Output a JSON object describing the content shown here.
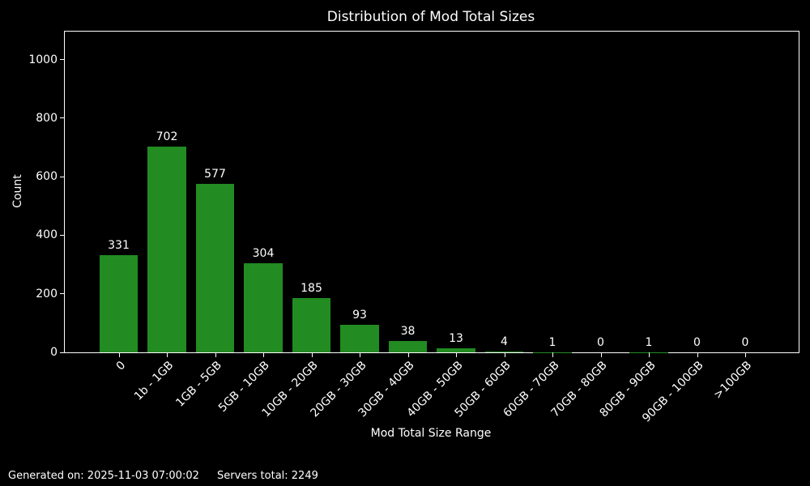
{
  "chart_data": {
    "type": "bar",
    "title": "Distribution of Mod Total Sizes",
    "xlabel": "Mod Total Size Range",
    "ylabel": "Count",
    "categories": [
      "0",
      "1b - 1GB",
      "1GB - 5GB",
      "5GB - 10GB",
      "10GB - 20GB",
      "20GB - 30GB",
      "30GB - 40GB",
      "40GB - 50GB",
      "50GB - 60GB",
      "60GB - 70GB",
      "70GB - 80GB",
      "80GB - 90GB",
      "90GB - 100GB",
      ">100GB"
    ],
    "values": [
      331,
      702,
      577,
      304,
      185,
      93,
      38,
      13,
      4,
      1,
      0,
      1,
      0,
      0
    ],
    "yticks": [
      0,
      200,
      400,
      600,
      800,
      1000
    ],
    "ylim": [
      0,
      1096
    ],
    "bar_color": "#228B22",
    "background_color": "#000000",
    "text_color": "#ffffff",
    "grid": false,
    "legend": null,
    "x_tick_rotation": 45
  },
  "footer": {
    "generated": "Generated on: 2025-11-03 07:00:02",
    "servers": "Servers total: 2249"
  }
}
